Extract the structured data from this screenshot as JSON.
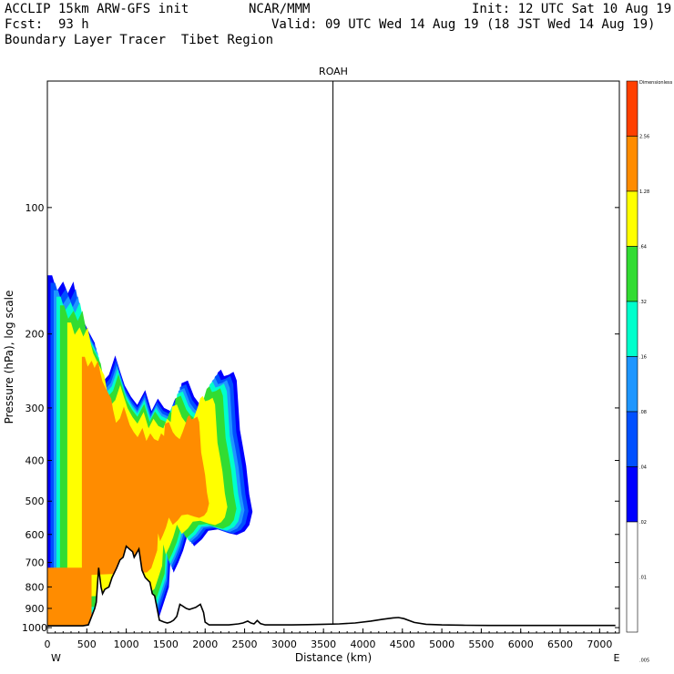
{
  "header": {
    "model": "ACCLIP 15km ARW-GFS init",
    "fcst_label": "Fcst:",
    "fcst_value": "93 h",
    "field": "Boundary Layer Tracer  Tibet Region",
    "org": "NCAR/MMM",
    "init": "Init: 12 UTC Sat 10 Aug 19",
    "valid": "Valid: 09 UTC Wed 14 Aug 19 (18 JST Wed 14 Aug 19)"
  },
  "chart_data": {
    "type": "heatmap",
    "title": "ROAH",
    "xlabel": "Distance (km)",
    "ylabel": "Pressure (hPa), log scale",
    "x_ticks": [
      "0",
      "500",
      "1000",
      "1500",
      "2000",
      "2500",
      "3000",
      "3500",
      "4000",
      "4500",
      "5000",
      "5500",
      "6000",
      "6500",
      "7000"
    ],
    "x_tick_values": [
      0,
      500,
      1000,
      1500,
      2000,
      2500,
      3000,
      3500,
      4000,
      4500,
      5000,
      5500,
      6000,
      6500,
      7000
    ],
    "xlim": [
      0,
      7250
    ],
    "y_ticks": [
      "100",
      "200",
      "300",
      "400",
      "500",
      "600",
      "700",
      "800",
      "900",
      "1000"
    ],
    "y_tick_values": [
      100,
      200,
      300,
      400,
      500,
      600,
      700,
      800,
      900,
      1000
    ],
    "ylim": [
      1030,
      50
    ],
    "y_scale": "log",
    "left_end": "W",
    "right_end": "E",
    "marker_line_x": 3620,
    "colorbar": {
      "title": "Dimensionless",
      "labels": [
        "2.56",
        "1.28",
        ".64",
        ".32",
        ".16",
        ".08",
        ".04",
        ".02",
        ".01",
        ".005"
      ],
      "colors": [
        "#ff4000",
        "#ff8c00",
        "#ffff00",
        "#32dc32",
        "#00ffcc",
        "#1e96ff",
        "#0050ff",
        "#0000ff",
        "#ffffff"
      ]
    },
    "terrain": {
      "x": [
        0,
        450,
        520,
        600,
        620,
        650,
        680,
        700,
        730,
        780,
        820,
        880,
        920,
        960,
        1000,
        1040,
        1080,
        1100,
        1160,
        1200,
        1240,
        1300,
        1330,
        1360,
        1420,
        1480,
        1520,
        1560,
        1600,
        1640,
        1680,
        1720,
        1760,
        1800,
        1840,
        1880,
        1940,
        1980,
        2000,
        2050,
        2100,
        2200,
        2300,
        2420,
        2480,
        2540,
        2580,
        2620,
        2660,
        2700,
        2760,
        2800,
        2860,
        2950,
        3100,
        3300,
        3500,
        3700,
        3900,
        4100,
        4250,
        4380,
        4450,
        4520,
        4650,
        4800,
        5000,
        5300,
        5600,
        6000,
        6500,
        7000,
        7200
      ],
      "p": [
        990,
        990,
        985,
        900,
        870,
        720,
        800,
        830,
        810,
        800,
        760,
        720,
        690,
        680,
        640,
        650,
        660,
        680,
        650,
        730,
        760,
        780,
        830,
        840,
        960,
        970,
        975,
        970,
        960,
        940,
        880,
        890,
        900,
        905,
        900,
        895,
        880,
        920,
        970,
        985,
        985,
        985,
        985,
        980,
        975,
        965,
        975,
        980,
        962,
        978,
        985,
        985,
        985,
        985,
        985,
        984,
        982,
        980,
        975,
        965,
        955,
        948,
        946,
        952,
        972,
        982,
        985,
        987,
        988,
        988,
        988,
        988,
        988
      ]
    },
    "tracer_bands": [
      {
        "level": ".005",
        "color": "#0000ff",
        "x": [
          0,
          0,
          60,
          120,
          200,
          260,
          330,
          380,
          420,
          480,
          540,
          600,
          640,
          700,
          780,
          860,
          920,
          980,
          1060,
          1140,
          1240,
          1320,
          1400,
          1480,
          1560,
          1620,
          1680,
          1700,
          1780,
          1860,
          1920,
          2000,
          2060,
          2120,
          2160,
          2200,
          2240,
          2300,
          2360,
          2400,
          2440,
          2480,
          2520,
          2560,
          2600,
          2560,
          2500,
          2400,
          2300,
          2160,
          2040,
          1960,
          1860,
          1780,
          1720,
          1660,
          1600,
          1560,
          1540,
          1420,
          1330
        ],
        "p": [
          1000,
          145,
          145,
          158,
          150,
          160,
          150,
          168,
          180,
          190,
          200,
          210,
          232,
          260,
          250,
          225,
          245,
          265,
          282,
          295,
          272,
          305,
          285,
          300,
          305,
          285,
          292,
          262,
          258,
          282,
          292,
          300,
          282,
          262,
          247,
          243,
          252,
          250,
          246,
          258,
          338,
          372,
          412,
          482,
          530,
          570,
          590,
          602,
          596,
          584,
          588,
          616,
          640,
          600,
          656,
          700,
          740,
          690,
          802,
          940,
          975
        ]
      },
      {
        "level": ".01",
        "color": "#0050ff"
      },
      {
        "level": ".02",
        "color": "#1e96ff"
      },
      {
        "level": ".04",
        "color": "#00ffcc"
      },
      {
        "level": ".08",
        "color": "#32dc32"
      },
      {
        "level": ".16",
        "color": "#ffff00"
      },
      {
        "level": ".32",
        "color": "#ff8c00"
      }
    ]
  }
}
